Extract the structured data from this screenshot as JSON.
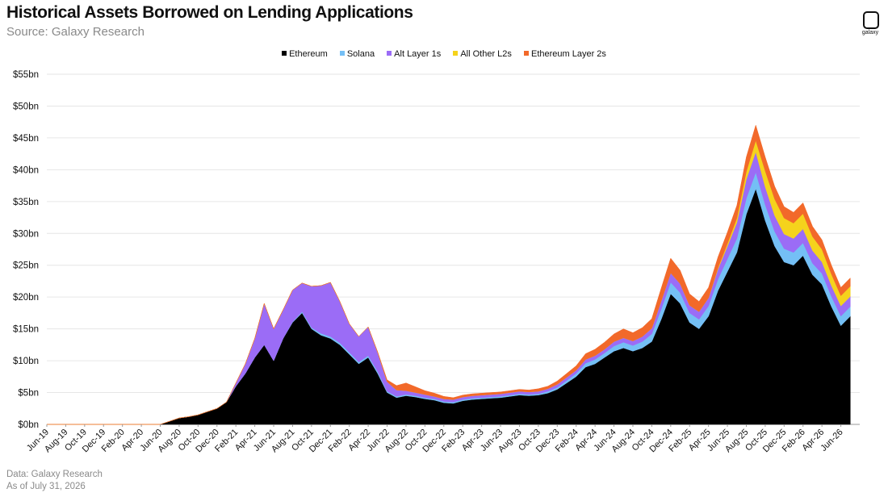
{
  "header": {
    "title": "Historical Assets Borrowed on Lending Applications",
    "subtitle": "Source: Galaxy Research"
  },
  "logo": {
    "text": "galaxy",
    "icon": "galaxy-logo-icon"
  },
  "footer": {
    "line1": "Data: Galaxy Research",
    "line2": "As of July 31, 2026"
  },
  "chart_data": {
    "type": "area",
    "stacked": true,
    "title": "Historical Assets Borrowed on Lending Applications",
    "subtitle": "Source: Galaxy Research",
    "xlabel": "",
    "ylabel": "",
    "legend_position": "top-center",
    "grid": true,
    "ylim": [
      0,
      55
    ],
    "y_ticks": [
      "$0bn",
      "$5bn",
      "$10bn",
      "$15bn",
      "$20bn",
      "$25bn",
      "$30bn",
      "$35bn",
      "$40bn",
      "$45bn",
      "$50bn",
      "$55bn"
    ],
    "x_ticks": [
      "Jun-19",
      "Aug-19",
      "Oct-19",
      "Dec-19",
      "Feb-20",
      "Apr-20",
      "Jun-20",
      "Aug-20",
      "Oct-20",
      "Dec-20",
      "Feb-21",
      "Apr-21",
      "Jun-21",
      "Aug-21",
      "Oct-21",
      "Dec-21",
      "Feb-22",
      "Apr-22",
      "Jun-22",
      "Aug-22",
      "Oct-22",
      "Dec-22",
      "Feb-23",
      "Apr-23",
      "Jun-23",
      "Aug-23",
      "Oct-23",
      "Dec-23",
      "Feb-24",
      "Apr-24",
      "Jun-24",
      "Aug-24",
      "Oct-24",
      "Dec-24",
      "Feb-25",
      "Apr-25",
      "Jun-25",
      "Aug-25",
      "Oct-25",
      "Dec-25",
      "Feb-26",
      "Apr-26",
      "Jun-26"
    ],
    "x": [
      "Jun-19",
      "Jul-19",
      "Aug-19",
      "Sep-19",
      "Oct-19",
      "Nov-19",
      "Dec-19",
      "Jan-20",
      "Feb-20",
      "Mar-20",
      "Apr-20",
      "May-20",
      "Jun-20",
      "Jul-20",
      "Aug-20",
      "Sep-20",
      "Oct-20",
      "Nov-20",
      "Dec-20",
      "Jan-21",
      "Feb-21",
      "Mar-21",
      "Apr-21",
      "May-21",
      "Jun-21",
      "Jul-21",
      "Aug-21",
      "Sep-21",
      "Oct-21",
      "Nov-21",
      "Dec-21",
      "Jan-22",
      "Feb-22",
      "Mar-22",
      "Apr-22",
      "May-22",
      "Jun-22",
      "Jul-22",
      "Aug-22",
      "Sep-22",
      "Oct-22",
      "Nov-22",
      "Dec-22",
      "Jan-23",
      "Feb-23",
      "Mar-23",
      "Apr-23",
      "May-23",
      "Jun-23",
      "Jul-23",
      "Aug-23",
      "Sep-23",
      "Oct-23",
      "Nov-23",
      "Dec-23",
      "Jan-24",
      "Feb-24",
      "Mar-24",
      "Apr-24",
      "May-24",
      "Jun-24",
      "Jul-24",
      "Aug-24",
      "Sep-24",
      "Oct-24",
      "Nov-24",
      "Dec-24",
      "Jan-25",
      "Feb-25",
      "Mar-25",
      "Apr-25",
      "May-25",
      "Jun-25",
      "Jul-25",
      "Aug-25",
      "Sep-25",
      "Oct-25",
      "Nov-25",
      "Dec-25",
      "Jan-26",
      "Feb-26",
      "Mar-26",
      "Apr-26",
      "May-26",
      "Jun-26",
      "Jul-26"
    ],
    "series": [
      {
        "name": "Ethereum",
        "color": "#000000",
        "values": [
          0,
          0,
          0,
          0,
          0,
          0,
          0,
          0,
          0,
          0,
          0,
          0,
          0,
          0.5,
          1.0,
          1.2,
          1.5,
          2.0,
          2.5,
          3.5,
          6.0,
          8.0,
          10.5,
          12.5,
          10.0,
          13.5,
          16.0,
          17.5,
          15.0,
          14.0,
          13.5,
          12.5,
          11.0,
          9.5,
          10.5,
          8.0,
          5.0,
          4.2,
          4.5,
          4.3,
          4.0,
          3.8,
          3.4,
          3.3,
          3.7,
          3.9,
          4.0,
          4.1,
          4.2,
          4.4,
          4.6,
          4.5,
          4.6,
          4.9,
          5.5,
          6.5,
          7.5,
          9.0,
          9.5,
          10.5,
          11.5,
          12.0,
          11.5,
          12.0,
          13.0,
          16.5,
          20.5,
          19.0,
          16.0,
          15.0,
          17.0,
          21.0,
          24.0,
          27.0,
          33.0,
          37.0,
          32.0,
          28.0,
          25.5,
          25.0,
          26.5,
          23.5,
          22.0,
          18.5,
          15.5,
          17.0
        ]
      },
      {
        "name": "Solana",
        "color": "#74bff5",
        "values": [
          0,
          0,
          0,
          0,
          0,
          0,
          0,
          0,
          0,
          0,
          0,
          0,
          0,
          0,
          0,
          0,
          0,
          0,
          0,
          0,
          0,
          0,
          0,
          0,
          0,
          0,
          0.1,
          0.2,
          0.2,
          0.3,
          0.3,
          0.3,
          0.3,
          0.3,
          0.3,
          0.3,
          0.2,
          0.2,
          0.2,
          0.2,
          0.2,
          0.2,
          0.2,
          0.2,
          0.2,
          0.2,
          0.2,
          0.2,
          0.2,
          0.2,
          0.2,
          0.2,
          0.2,
          0.3,
          0.3,
          0.4,
          0.5,
          0.6,
          0.7,
          0.7,
          0.8,
          0.9,
          0.9,
          1.0,
          1.2,
          1.6,
          1.8,
          1.7,
          1.5,
          1.5,
          1.6,
          1.8,
          2.0,
          2.2,
          2.5,
          2.6,
          2.5,
          2.3,
          2.1,
          2.0,
          2.0,
          1.8,
          1.7,
          1.6,
          1.5,
          1.5
        ]
      },
      {
        "name": "Alt Layer 1s",
        "color": "#9b6cf6",
        "values": [
          0,
          0,
          0,
          0,
          0,
          0,
          0,
          0,
          0,
          0,
          0,
          0,
          0,
          0,
          0,
          0,
          0,
          0,
          0,
          0,
          0.5,
          1.5,
          3.0,
          6.5,
          5.0,
          4.5,
          5.0,
          4.5,
          6.5,
          7.5,
          8.5,
          6.5,
          4.5,
          4.0,
          4.5,
          3.0,
          1.5,
          1.0,
          0.6,
          0.5,
          0.5,
          0.4,
          0.4,
          0.4,
          0.4,
          0.4,
          0.4,
          0.4,
          0.4,
          0.4,
          0.4,
          0.4,
          0.4,
          0.4,
          0.5,
          0.5,
          0.5,
          0.6,
          0.6,
          0.6,
          0.7,
          0.7,
          0.7,
          0.8,
          0.9,
          1.3,
          1.5,
          1.4,
          1.2,
          1.2,
          1.3,
          1.6,
          2.0,
          2.5,
          3.0,
          3.2,
          2.8,
          2.5,
          2.3,
          2.2,
          2.2,
          2.0,
          1.8,
          1.7,
          1.6,
          1.6
        ]
      },
      {
        "name": "All Other L2s",
        "color": "#f5d31c",
        "values": [
          0,
          0,
          0,
          0,
          0,
          0,
          0,
          0,
          0,
          0,
          0,
          0,
          0,
          0,
          0,
          0,
          0,
          0,
          0,
          0,
          0,
          0,
          0,
          0,
          0,
          0,
          0,
          0,
          0,
          0,
          0,
          0,
          0,
          0,
          0,
          0,
          0,
          0,
          0,
          0,
          0,
          0,
          0,
          0,
          0,
          0,
          0,
          0,
          0,
          0,
          0,
          0,
          0,
          0,
          0,
          0,
          0,
          0,
          0,
          0,
          0,
          0,
          0,
          0,
          0,
          0,
          0,
          0,
          0,
          0,
          0,
          0.2,
          0.4,
          0.7,
          1.2,
          1.8,
          2.5,
          2.6,
          2.5,
          2.4,
          2.4,
          2.2,
          2.0,
          1.8,
          1.6,
          1.6
        ]
      },
      {
        "name": "Ethereum Layer 2s",
        "color": "#f2692a",
        "values": [
          0,
          0,
          0,
          0,
          0,
          0,
          0,
          0,
          0,
          0,
          0,
          0,
          0,
          0,
          0,
          0,
          0,
          0,
          0,
          0,
          0,
          0,
          0,
          0,
          0,
          0,
          0,
          0,
          0,
          0,
          0,
          0,
          0,
          0,
          0,
          0.1,
          0.3,
          0.7,
          1.2,
          0.9,
          0.6,
          0.5,
          0.4,
          0.3,
          0.3,
          0.3,
          0.3,
          0.3,
          0.3,
          0.3,
          0.3,
          0.3,
          0.4,
          0.4,
          0.5,
          0.6,
          0.7,
          0.9,
          1.0,
          1.1,
          1.2,
          1.4,
          1.3,
          1.4,
          1.5,
          2.0,
          2.3,
          2.1,
          1.8,
          1.6,
          1.6,
          1.7,
          1.8,
          2.0,
          2.3,
          2.4,
          2.2,
          2.0,
          1.8,
          1.7,
          1.7,
          1.6,
          1.5,
          1.4,
          1.3,
          1.3
        ]
      }
    ]
  }
}
